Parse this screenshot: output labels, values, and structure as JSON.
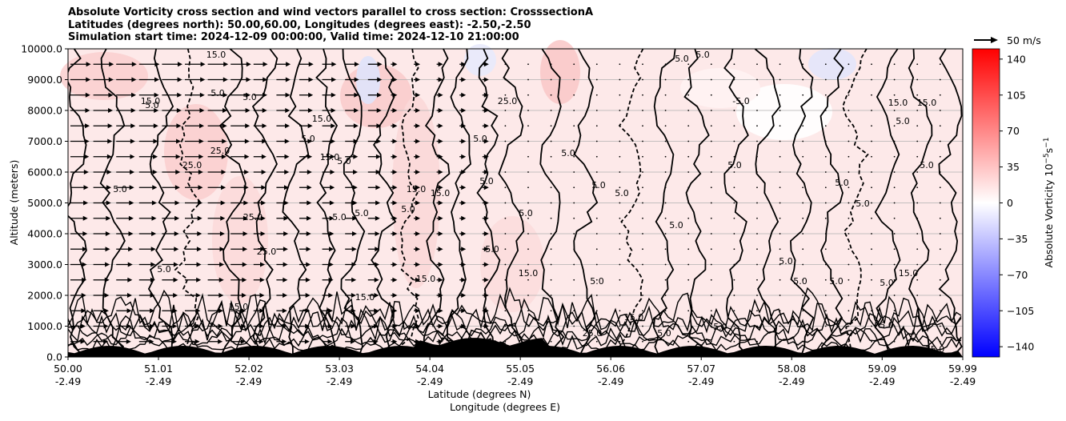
{
  "title_lines": [
    "Absolute Vorticity cross section and wind vectors parallel to cross section: CrosssectionA",
    "Latitudes (degrees north): 50.00,60.00, Longitudes (degrees east): -2.50,-2.50",
    "Simulation start time: 2024-12-09 00:00:00, Valid time: 2024-12-10 21:00:00"
  ],
  "chart_data": {
    "type": "heatmap",
    "title": "Absolute Vorticity cross section and wind vectors parallel to cross section: CrosssectionA",
    "ylabel": "Altitude (meters)",
    "xlabel_lines": [
      "Latitude (degrees N)",
      "Longitude (degrees E)"
    ],
    "ylim": [
      0,
      10000
    ],
    "xlim": [
      50.0,
      59.99
    ],
    "y_ticks": [
      "0.0",
      "1000.0",
      "2000.0",
      "3000.0",
      "4000.0",
      "5000.0",
      "6000.0",
      "7000.0",
      "8000.0",
      "9000.0",
      "10000.0"
    ],
    "x_ticks": [
      {
        "lat": "50.00",
        "lon": "-2.49"
      },
      {
        "lat": "51.01",
        "lon": "-2.49"
      },
      {
        "lat": "52.02",
        "lon": "-2.49"
      },
      {
        "lat": "53.03",
        "lon": "-2.49"
      },
      {
        "lat": "54.04",
        "lon": "-2.49"
      },
      {
        "lat": "55.05",
        "lon": "-2.49"
      },
      {
        "lat": "56.06",
        "lon": "-2.49"
      },
      {
        "lat": "57.07",
        "lon": "-2.49"
      },
      {
        "lat": "58.08",
        "lon": "-2.49"
      },
      {
        "lat": "59.09",
        "lon": "-2.49"
      },
      {
        "lat": "59.99",
        "lon": "-2.49"
      }
    ],
    "grid": true,
    "colorbar": {
      "label": "Absolute Vorticity 10⁻⁵s⁻¹",
      "range": [
        -150,
        150
      ],
      "ticks": [
        "140",
        "105",
        "70",
        "35",
        "0",
        "−35",
        "−70",
        "−105",
        "−140"
      ],
      "colors": [
        "#0000ff",
        "#ffffff",
        "#ff0000"
      ]
    },
    "quiver_key": "50 m/s",
    "contour_labels": [
      "5.0",
      "15.0",
      "25.0",
      "-5.0"
    ],
    "contour_levels": [
      -5,
      5,
      15,
      25
    ]
  },
  "colors": {
    "background": "#ffffff",
    "grid": "#b0b0b0",
    "positive": "#ff0000",
    "negative": "#0000ff"
  }
}
